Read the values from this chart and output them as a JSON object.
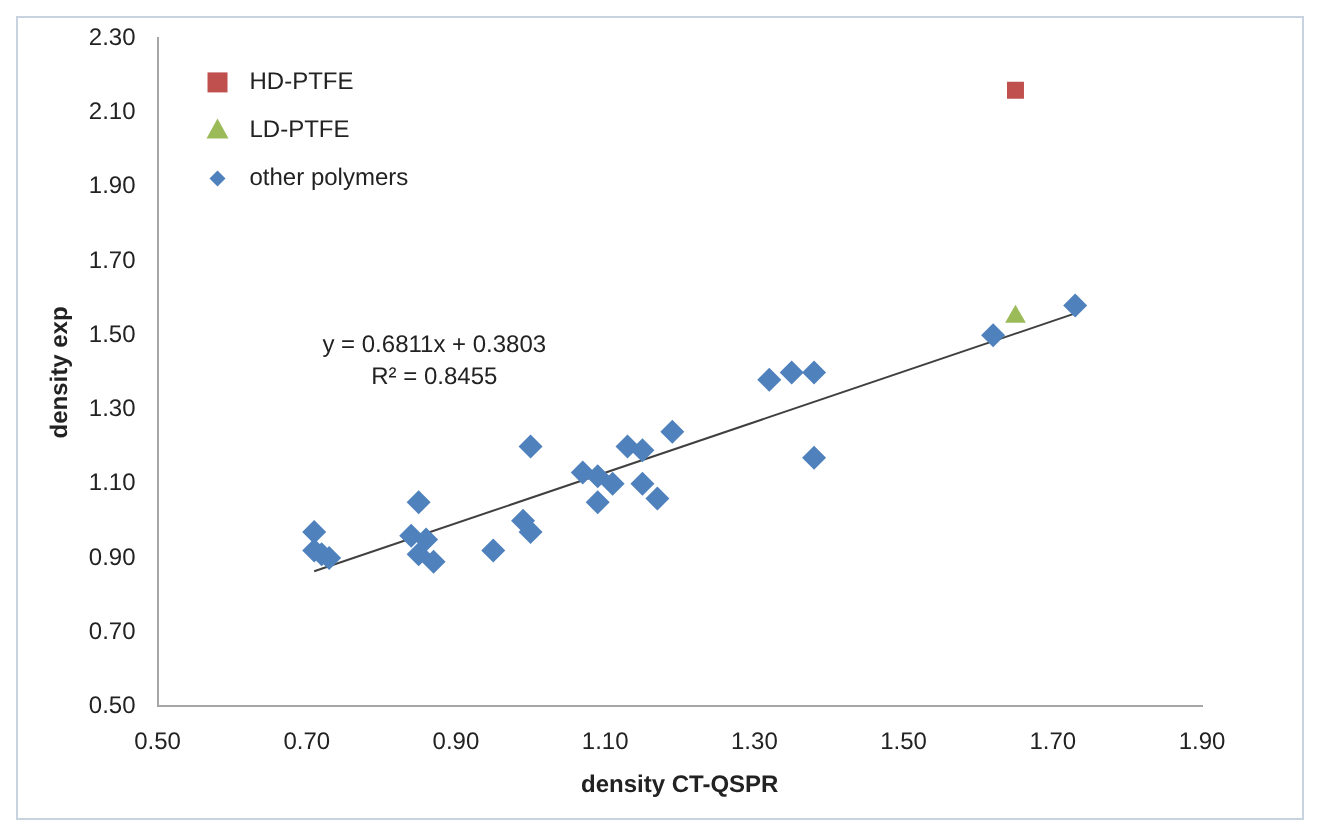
{
  "chart_data": {
    "type": "scatter",
    "xlabel": "density CT-QSPR",
    "ylabel": "density exp",
    "xlim": [
      0.5,
      1.9
    ],
    "xticks": [
      {
        "value": 0.5,
        "label": "0.50"
      },
      {
        "value": 0.7,
        "label": "0.70"
      },
      {
        "value": 0.9,
        "label": "0.90"
      },
      {
        "value": 1.1,
        "label": "1.10"
      },
      {
        "value": 1.3,
        "label": "1.30"
      },
      {
        "value": 1.5,
        "label": "1.50"
      },
      {
        "value": 1.7,
        "label": "1.70"
      },
      {
        "value": 1.9,
        "label": "1.90"
      }
    ],
    "ylim": [
      0.5,
      2.3
    ],
    "yticks": [
      {
        "value": 0.5,
        "label": "0.50"
      },
      {
        "value": 0.7,
        "label": "0.70"
      },
      {
        "value": 0.9,
        "label": "0.90"
      },
      {
        "value": 1.1,
        "label": "1.10"
      },
      {
        "value": 1.3,
        "label": "1.30"
      },
      {
        "value": 1.5,
        "label": "1.50"
      },
      {
        "value": 1.7,
        "label": "1.70"
      },
      {
        "value": 1.9,
        "label": "1.90"
      },
      {
        "value": 2.1,
        "label": "2.10"
      },
      {
        "value": 2.3,
        "label": "2.30"
      }
    ],
    "grid": false,
    "legend": "top left",
    "annotations": [
      "y = 0.6811x + 0.3803",
      "R² = 0.8455"
    ],
    "series": [
      {
        "name": "HD-PTFE",
        "color": "#c0504d",
        "marker": "square",
        "x": [
          1.65
        ],
        "values": [
          2.16
        ]
      },
      {
        "name": "LD-PTFE",
        "color": "#9bbb59",
        "marker": "triangle",
        "x": [
          1.65
        ],
        "values": [
          1.55
        ]
      },
      {
        "name": "other polymers",
        "color": "#4f81bd",
        "marker": "diamond",
        "x": [
          0.71,
          0.71,
          0.72,
          0.73,
          0.84,
          0.85,
          0.85,
          0.86,
          0.87,
          0.95,
          0.99,
          1.0,
          1.0,
          1.07,
          1.09,
          1.09,
          1.11,
          1.13,
          1.15,
          1.15,
          1.17,
          1.19,
          1.32,
          1.35,
          1.38,
          1.38,
          1.62,
          1.73
        ],
        "values": [
          0.97,
          0.92,
          0.91,
          0.9,
          0.96,
          1.05,
          0.91,
          0.95,
          0.89,
          0.92,
          1.0,
          0.97,
          1.2,
          1.13,
          1.05,
          1.12,
          1.1,
          1.2,
          1.19,
          1.1,
          1.06,
          1.24,
          1.38,
          1.4,
          1.4,
          1.17,
          1.5,
          1.58
        ]
      },
      {
        "type": "line",
        "color": "#404040",
        "marker": "none",
        "x": [
          0.71,
          1.73
        ],
        "values": [
          0.864,
          1.559
        ]
      }
    ]
  }
}
